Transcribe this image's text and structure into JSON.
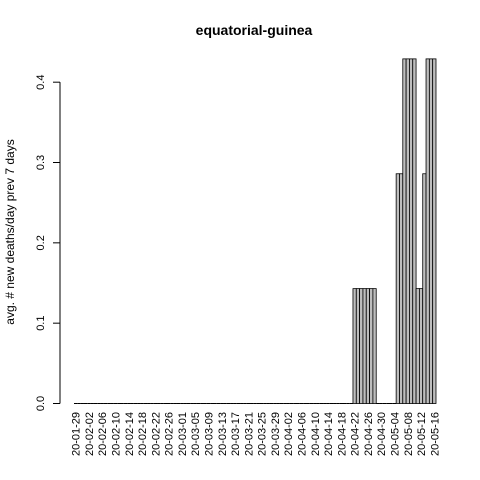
{
  "chart_data": {
    "type": "bar",
    "title": "equatorial-guinea",
    "xlabel": "",
    "ylabel": "avg. # new deaths/day prev  7  days",
    "ylim": [
      0,
      0.43
    ],
    "yticks": [
      0.0,
      0.1,
      0.2,
      0.3,
      0.4
    ],
    "ytick_labels": [
      "0.0",
      "0.1",
      "0.2",
      "0.3",
      "0.4"
    ],
    "grid": false,
    "legend": "none",
    "bar_color": "#bebebe",
    "x_tick_labels": [
      "20-01-29",
      "20-02-02",
      "20-02-06",
      "20-02-10",
      "20-02-14",
      "20-02-18",
      "20-02-22",
      "20-02-26",
      "20-03-01",
      "20-03-05",
      "20-03-09",
      "20-03-13",
      "20-03-17",
      "20-03-21",
      "20-03-25",
      "20-03-29",
      "20-04-02",
      "20-04-06",
      "20-04-10",
      "20-04-14",
      "20-04-18",
      "20-04-22",
      "20-04-26",
      "20-04-30",
      "20-05-04",
      "20-05-08",
      "20-05-12",
      "20-05-16"
    ],
    "x_tick_every": 4,
    "values": [
      0,
      0,
      0,
      0,
      0,
      0,
      0,
      0,
      0,
      0,
      0,
      0,
      0,
      0,
      0,
      0,
      0,
      0,
      0,
      0,
      0,
      0,
      0,
      0,
      0,
      0,
      0,
      0,
      0,
      0,
      0,
      0,
      0,
      0,
      0,
      0,
      0,
      0,
      0,
      0,
      0,
      0,
      0,
      0,
      0,
      0,
      0,
      0,
      0,
      0,
      0,
      0,
      0,
      0,
      0,
      0,
      0,
      0,
      0,
      0,
      0,
      0,
      0,
      0,
      0,
      0,
      0,
      0,
      0,
      0,
      0,
      0,
      0,
      0,
      0,
      0,
      0,
      0,
      0,
      0,
      0,
      0,
      0,
      0,
      0.143,
      0.143,
      0.143,
      0.143,
      0.143,
      0.143,
      0.143,
      0,
      0,
      0,
      0,
      0,
      0,
      0.286,
      0.286,
      0.429,
      0.429,
      0.429,
      0.429,
      0.143,
      0.143,
      0.286,
      0.429,
      0.429,
      0.429
    ]
  }
}
